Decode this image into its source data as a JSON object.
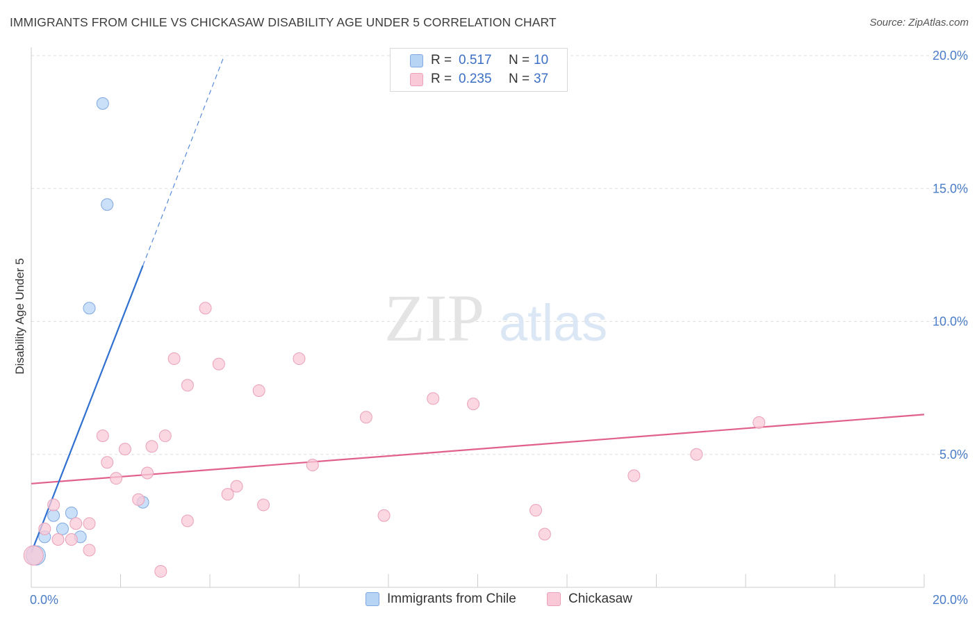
{
  "title": "IMMIGRANTS FROM CHILE VS CHICKASAW DISABILITY AGE UNDER 5 CORRELATION CHART",
  "source": "Source: ZipAtlas.com",
  "watermark": {
    "zip": "ZIP",
    "atlas": "atlas"
  },
  "legend": {
    "rows": [
      {
        "r_label": "R =",
        "r_value": "0.517",
        "n_label": "N =",
        "n_value": "10",
        "swatch": "#b8d4f5",
        "stroke": "#7fa8e0"
      },
      {
        "r_label": "R =",
        "r_value": "0.235",
        "n_label": "N =",
        "n_value": "37",
        "swatch": "#f9c9d8",
        "stroke": "#e9a0b8"
      }
    ]
  },
  "bottom_legend": [
    {
      "label": "Immigrants from Chile",
      "color": "#b8d4f5",
      "stroke": "#7fa8e0"
    },
    {
      "label": "Chickasaw",
      "color": "#f9c9d8",
      "stroke": "#e9a0b8"
    }
  ],
  "chart_data": {
    "type": "scatter",
    "title": "IMMIGRANTS FROM CHILE VS CHICKASAW DISABILITY AGE UNDER 5 CORRELATION CHART",
    "xlabel": "",
    "ylabel": "Disability Age Under 5",
    "xlim": [
      0,
      20
    ],
    "ylim": [
      0,
      20
    ],
    "x_tick_labels": [
      "0.0%",
      "20.0%"
    ],
    "y_ticks": [
      {
        "value": 5,
        "label": "5.0%"
      },
      {
        "value": 10,
        "label": "10.0%"
      },
      {
        "value": 15,
        "label": "15.0%"
      },
      {
        "value": 20,
        "label": "20.0%"
      }
    ],
    "series": [
      {
        "name": "Immigrants from Chile",
        "color": "#b8d4f5",
        "stroke": "#7fa8e0",
        "line_color": "#2f6fd0",
        "points": [
          [
            0.1,
            1.2
          ],
          [
            0.3,
            1.9
          ],
          [
            0.5,
            2.7
          ],
          [
            0.7,
            2.2
          ],
          [
            0.9,
            2.8
          ],
          [
            1.1,
            1.9
          ],
          [
            1.3,
            10.5
          ],
          [
            1.6,
            18.2
          ],
          [
            1.7,
            14.4
          ],
          [
            2.5,
            3.2
          ]
        ],
        "trend": {
          "x0": 0.0,
          "y0": 1.3,
          "x1": 2.5,
          "y1": 12.1,
          "dash_x1": 4.3,
          "dash_y1": 19.9
        }
      },
      {
        "name": "Chickasaw",
        "color": "#f9c9d8",
        "stroke": "#e9a0b8",
        "line_color": "#e0608a",
        "points": [
          [
            0.05,
            1.2
          ],
          [
            0.3,
            2.2
          ],
          [
            0.5,
            3.1
          ],
          [
            0.6,
            1.8
          ],
          [
            0.9,
            1.8
          ],
          [
            1.0,
            2.4
          ],
          [
            1.3,
            1.4
          ],
          [
            1.3,
            2.4
          ],
          [
            1.6,
            5.7
          ],
          [
            1.7,
            4.7
          ],
          [
            1.9,
            4.1
          ],
          [
            2.1,
            5.2
          ],
          [
            2.4,
            3.3
          ],
          [
            2.6,
            4.3
          ],
          [
            2.7,
            5.3
          ],
          [
            2.9,
            0.6
          ],
          [
            3.0,
            5.7
          ],
          [
            3.2,
            8.6
          ],
          [
            3.5,
            2.5
          ],
          [
            3.5,
            7.6
          ],
          [
            3.9,
            10.5
          ],
          [
            4.2,
            8.4
          ],
          [
            4.4,
            3.5
          ],
          [
            4.6,
            3.8
          ],
          [
            5.1,
            7.4
          ],
          [
            5.2,
            3.1
          ],
          [
            6.0,
            8.6
          ],
          [
            6.3,
            4.6
          ],
          [
            7.5,
            6.4
          ],
          [
            7.9,
            2.7
          ],
          [
            9.0,
            7.1
          ],
          [
            9.9,
            6.9
          ],
          [
            11.3,
            2.9
          ],
          [
            11.5,
            2.0
          ],
          [
            13.5,
            4.2
          ],
          [
            14.9,
            5.0
          ],
          [
            16.3,
            6.2
          ]
        ],
        "trend": {
          "x0": 0.0,
          "y0": 3.9,
          "x1": 20.0,
          "y1": 6.5
        }
      }
    ]
  }
}
